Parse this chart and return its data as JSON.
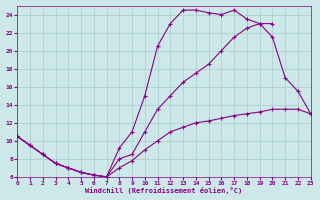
{
  "xlabel": "Windchill (Refroidissement éolien,°C)",
  "bg_color": "#cce8e8",
  "grid_color": "#aacccc",
  "line_color": "#880088",
  "xlim": [
    0,
    23
  ],
  "ylim": [
    6,
    25
  ],
  "xticks": [
    0,
    1,
    2,
    3,
    4,
    5,
    6,
    7,
    8,
    9,
    10,
    11,
    12,
    13,
    14,
    15,
    16,
    17,
    18,
    19,
    20,
    21,
    22,
    23
  ],
  "yticks": [
    6,
    8,
    10,
    12,
    14,
    16,
    18,
    20,
    22,
    24
  ],
  "line1_x": [
    0,
    1,
    2,
    3,
    4,
    5,
    6,
    7,
    8,
    9,
    10,
    11,
    12,
    13,
    14,
    15,
    16,
    17,
    18,
    19,
    20
  ],
  "line1_y": [
    10.5,
    9.5,
    8.5,
    7.5,
    7.0,
    6.5,
    6.2,
    6.0,
    9.2,
    11.0,
    15.0,
    20.5,
    23.0,
    24.5,
    24.5,
    24.2,
    24.0,
    24.5,
    23.5,
    23.0,
    23.0
  ],
  "line2_x": [
    0,
    1,
    2,
    3,
    4,
    5,
    6,
    7,
    8,
    9,
    10,
    11,
    12,
    13,
    14,
    15,
    16,
    17,
    18,
    19,
    20,
    21,
    22,
    23
  ],
  "line2_y": [
    10.5,
    9.5,
    8.5,
    7.5,
    7.0,
    6.5,
    6.2,
    6.0,
    7.0,
    7.8,
    9.0,
    10.0,
    11.0,
    11.5,
    12.0,
    12.2,
    12.5,
    12.8,
    13.0,
    13.2,
    13.5,
    13.5,
    13.5,
    13.0
  ],
  "line3_x": [
    0,
    1,
    2,
    3,
    4,
    5,
    6,
    7,
    8,
    9,
    10,
    11,
    12,
    13,
    14,
    15,
    16,
    17,
    18,
    19,
    20,
    21,
    22,
    23
  ],
  "line3_y": [
    10.5,
    9.5,
    8.5,
    7.5,
    7.0,
    6.5,
    6.2,
    6.0,
    8.0,
    8.5,
    11.0,
    13.5,
    15.0,
    16.5,
    17.5,
    18.5,
    20.0,
    21.5,
    22.5,
    23.0,
    21.5,
    17.0,
    15.5,
    13.0
  ]
}
